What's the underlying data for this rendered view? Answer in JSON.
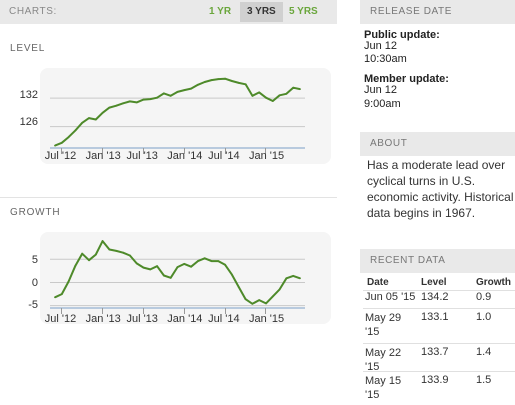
{
  "charts_bar": {
    "label": "CHARTS:",
    "ranges": [
      "1 YR",
      "3 YRS",
      "5 YRS"
    ],
    "selected": "3 YRS"
  },
  "level_section": {
    "title": "LEVEL"
  },
  "growth_section": {
    "title": "GROWTH"
  },
  "x_tick_labels": [
    "Jul '12",
    "Jan '13",
    "Jul '13",
    "Jan '14",
    "Jul '14",
    "Jan '15"
  ],
  "chart_data": [
    {
      "type": "line",
      "title": "LEVEL",
      "xlabel": "",
      "ylabel": "",
      "x_ticks": [
        "Jul '12",
        "Jan '13",
        "Jul '13",
        "Jan '14",
        "Jul '14",
        "Jan '15"
      ],
      "y_ticks": [
        126,
        132
      ],
      "ylim": [
        121.5,
        137.5
      ],
      "grid": "horizontal",
      "color": "#4e8a2a",
      "series": [
        {
          "x": [
            "2012-06",
            "2012-07",
            "2012-08",
            "2012-09",
            "2012-10",
            "2012-11",
            "2012-12",
            "2013-01",
            "2013-02",
            "2013-03",
            "2013-04",
            "2013-05",
            "2013-06",
            "2013-07",
            "2013-08",
            "2013-09",
            "2013-10",
            "2013-11",
            "2013-12",
            "2014-01",
            "2014-02",
            "2014-03",
            "2014-04",
            "2014-05",
            "2014-06",
            "2014-07",
            "2014-08",
            "2014-09",
            "2014-10",
            "2014-11",
            "2014-12",
            "2015-01",
            "2015-02",
            "2015-03",
            "2015-04",
            "2015-05",
            "2015-06"
          ],
          "values": [
            122.0,
            122.6,
            123.8,
            125.2,
            126.8,
            127.8,
            127.5,
            128.9,
            130.0,
            130.4,
            130.9,
            131.3,
            131.1,
            131.7,
            131.8,
            132.1,
            133.0,
            132.5,
            133.3,
            133.7,
            134.0,
            134.8,
            135.4,
            135.8,
            136.0,
            136.1,
            135.6,
            135.2,
            134.9,
            132.5,
            133.2,
            132.1,
            131.4,
            132.6,
            132.9,
            134.2,
            133.9
          ]
        }
      ]
    },
    {
      "type": "line",
      "title": "GROWTH",
      "xlabel": "",
      "ylabel": "",
      "x_ticks": [
        "Jul '12",
        "Jan '13",
        "Jul '13",
        "Jan '14",
        "Jul '14",
        "Jan '15"
      ],
      "y_ticks": [
        -5,
        0,
        5
      ],
      "ylim": [
        -5.5,
        10
      ],
      "grid": "horizontal",
      "color": "#4e8a2a",
      "series": [
        {
          "x": [
            "2012-06",
            "2012-07",
            "2012-08",
            "2012-09",
            "2012-10",
            "2012-11",
            "2012-12",
            "2013-01",
            "2013-02",
            "2013-03",
            "2013-04",
            "2013-05",
            "2013-06",
            "2013-07",
            "2013-08",
            "2013-09",
            "2013-10",
            "2013-11",
            "2013-12",
            "2014-01",
            "2014-02",
            "2014-03",
            "2014-04",
            "2014-05",
            "2014-06",
            "2014-07",
            "2014-08",
            "2014-09",
            "2014-10",
            "2014-11",
            "2014-12",
            "2015-01",
            "2015-02",
            "2015-03",
            "2015-04",
            "2015-05",
            "2015-06"
          ],
          "values": [
            -3.2,
            -2.5,
            0.2,
            3.6,
            6.2,
            4.8,
            6.0,
            8.9,
            7.1,
            6.8,
            6.4,
            5.8,
            4.1,
            3.2,
            2.8,
            3.5,
            1.5,
            1.0,
            3.3,
            4.0,
            3.4,
            4.6,
            5.2,
            4.6,
            4.6,
            3.8,
            1.7,
            -1.0,
            -3.6,
            -4.6,
            -3.8,
            -4.5,
            -3.0,
            -1.5,
            0.9,
            1.4,
            0.9
          ]
        }
      ]
    }
  ],
  "release": {
    "header": "RELEASE DATE",
    "public_label": "Public update:",
    "public_date": "Jun 12",
    "public_time": "10:30am",
    "member_label": "Member update:",
    "member_date": "Jun 12",
    "member_time": "9:00am"
  },
  "about": {
    "header": "ABOUT",
    "text": "Has a moderate lead over cyclical turns in U.S. economic activity. Historical data begins in 1967."
  },
  "recent": {
    "header": "RECENT DATA",
    "columns": [
      "Date",
      "Level",
      "Growth"
    ],
    "rows": [
      {
        "date": "Jun 05 '15",
        "level": "134.2",
        "growth": "0.9"
      },
      {
        "date": "May 29 '15",
        "level": "133.1",
        "growth": "1.0"
      },
      {
        "date": "May 22 '15",
        "level": "133.7",
        "growth": "1.4"
      },
      {
        "date": "May 15 '15",
        "level": "133.9",
        "growth": "1.5"
      }
    ]
  }
}
